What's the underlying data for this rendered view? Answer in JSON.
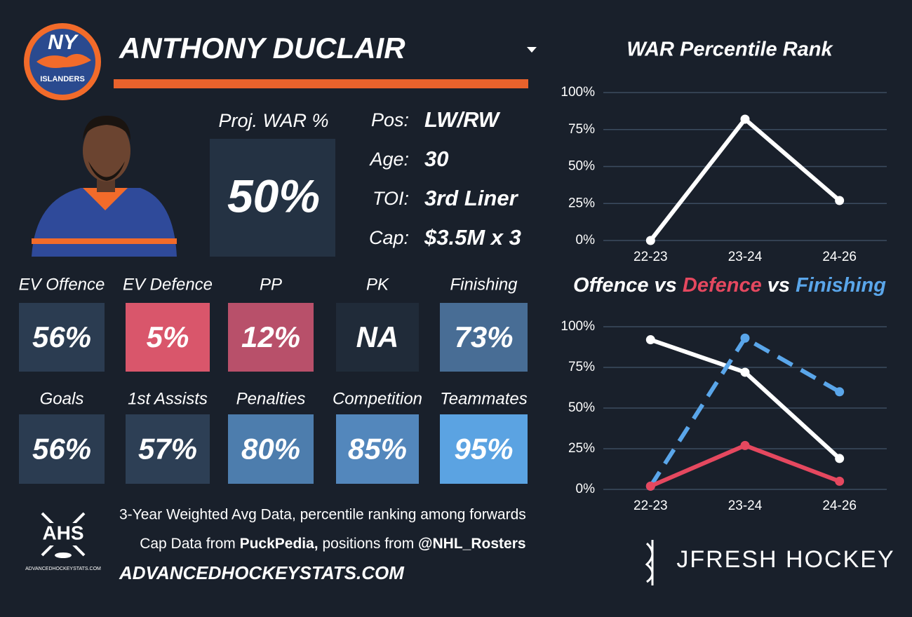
{
  "header": {
    "logo_top": "NY",
    "logo_bottom": "ISLANDERS",
    "name": "ANTHONY DUCLAIR"
  },
  "projection": {
    "label": "Proj. WAR %",
    "value": "50%"
  },
  "info": [
    {
      "label": "Pos:",
      "value": "LW/RW"
    },
    {
      "label": "Age:",
      "value": "30"
    },
    {
      "label": "TOI:",
      "value": "3rd Liner"
    },
    {
      "label": "Cap:",
      "value": "$3.5M x 3"
    }
  ],
  "tiles": [
    {
      "label": "EV Offence",
      "value": "56%",
      "color": "#2b3c51"
    },
    {
      "label": "EV Defence",
      "value": "5%",
      "color": "#d9566b"
    },
    {
      "label": "PP",
      "value": "12%",
      "color": "#b8506a"
    },
    {
      "label": "PK",
      "value": "NA",
      "color": "#202b39"
    },
    {
      "label": "Finishing",
      "value": "73%",
      "color": "#486d95"
    },
    {
      "label": "Goals",
      "value": "56%",
      "color": "#2b3c51"
    },
    {
      "label": "1st Assists",
      "value": "57%",
      "color": "#2d3f55"
    },
    {
      "label": "Penalties",
      "value": "80%",
      "color": "#4d7dad"
    },
    {
      "label": "Competition",
      "value": "85%",
      "color": "#5387bc"
    },
    {
      "label": "Teammates",
      "value": "95%",
      "color": "#5ba3e2"
    }
  ],
  "footer": {
    "logo": "AHS",
    "logo_caption": "ADVANCEDHOCKEYSTATS.COM",
    "line1": "3-Year Weighted Avg Data, percentile ranking among forwards",
    "line2": [
      "Cap Data from ",
      "PuckPedia,",
      " positions from ",
      "@NHL_Rosters"
    ],
    "site": "ADVANCEDHOCKEYSTATS.COM",
    "brand": "JFRESH HOCKEY"
  },
  "chart_data": [
    {
      "type": "line",
      "title": "WAR Percentile Rank",
      "categories": [
        "22-23",
        "23-24",
        "24-26"
      ],
      "values": [
        0,
        82,
        27
      ],
      "color": "#ffffff",
      "ylim": [
        0,
        100
      ],
      "yticks": [
        {
          "value": 0,
          "label": "0%"
        },
        {
          "value": 25,
          "label": "25%"
        },
        {
          "value": 50,
          "label": "50%"
        },
        {
          "value": 75,
          "label": "75%"
        },
        {
          "value": 100,
          "label": "100%"
        }
      ],
      "grid": true
    },
    {
      "type": "line",
      "title": [
        "Offence",
        "vs",
        "Defence",
        "vs",
        "Finishing"
      ],
      "categories": [
        "22-23",
        "23-24",
        "24-26"
      ],
      "series": [
        {
          "name": "Offence",
          "color": "#ffffff",
          "values": [
            92,
            72,
            19
          ]
        },
        {
          "name": "Finishing",
          "color": "#5aa6ea",
          "values": [
            2,
            93,
            60
          ],
          "dashed": true
        },
        {
          "name": "Defence",
          "color": "#e5485f",
          "values": [
            2,
            27,
            5
          ]
        }
      ],
      "ylim": [
        0,
        100
      ],
      "yticks": [
        {
          "value": 0,
          "label": "0%"
        },
        {
          "value": 25,
          "label": "25%"
        },
        {
          "value": 50,
          "label": "50%"
        },
        {
          "value": 75,
          "label": "75%"
        },
        {
          "value": 100,
          "label": "100%"
        }
      ],
      "grid": true
    }
  ]
}
